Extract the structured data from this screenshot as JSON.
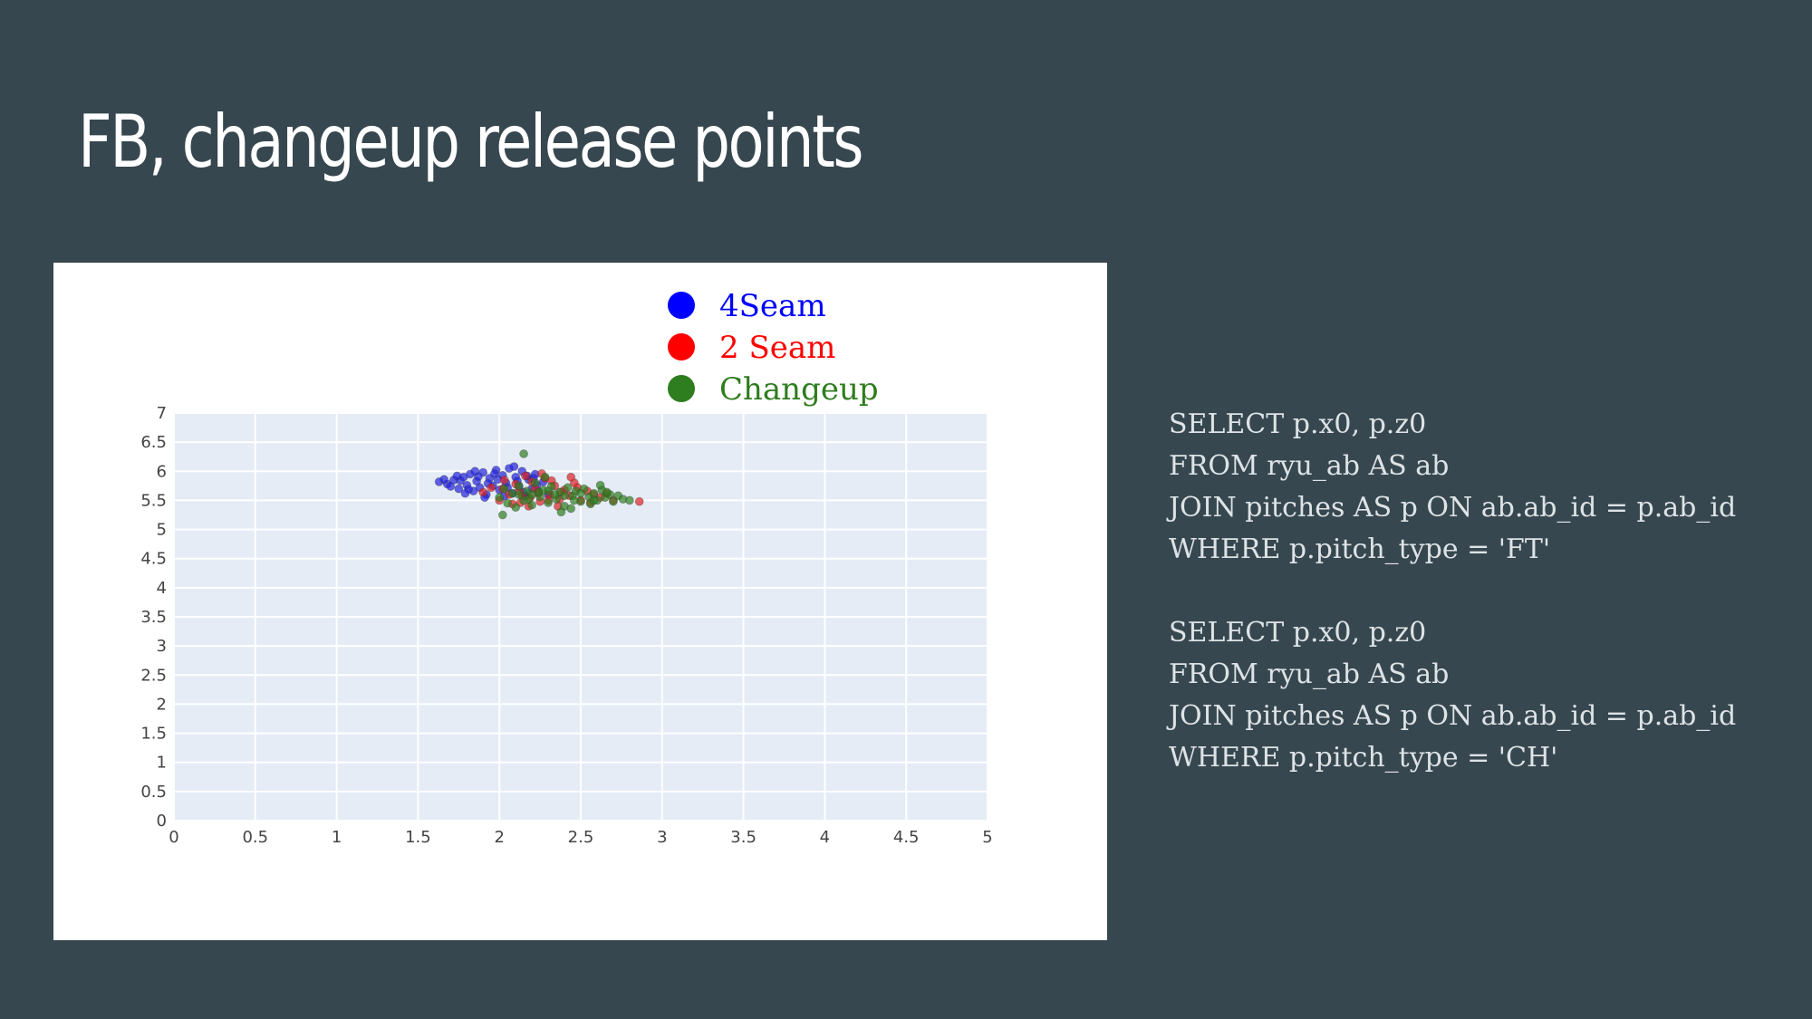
{
  "slide": {
    "title": "FB, changeup release points"
  },
  "chart_data": {
    "type": "scatter",
    "xlim": [
      0,
      5
    ],
    "ylim": [
      0,
      7
    ],
    "x_ticks": [
      "0",
      "0.5",
      "1",
      "1.5",
      "2",
      "2.5",
      "3",
      "3.5",
      "4",
      "4.5",
      "5"
    ],
    "y_ticks": [
      "0",
      "0.5",
      "1",
      "1.5",
      "2",
      "2.5",
      "3",
      "3.5",
      "4",
      "4.5",
      "5",
      "5.5",
      "6",
      "6.5",
      "7"
    ],
    "grid": true,
    "legend_position": "top",
    "legend": [
      {
        "name": "4Seam",
        "color": "#0000ff"
      },
      {
        "name": "2 Seam",
        "color": "#ff0000"
      },
      {
        "name": "Changeup",
        "color": "#2e7d1e"
      }
    ],
    "series": [
      {
        "name": "4Seam",
        "color": "#2222dd",
        "points": [
          [
            1.63,
            5.82
          ],
          [
            1.68,
            5.78
          ],
          [
            1.72,
            5.85
          ],
          [
            1.75,
            5.7
          ],
          [
            1.78,
            5.9
          ],
          [
            1.8,
            5.76
          ],
          [
            1.82,
            5.95
          ],
          [
            1.84,
            5.66
          ],
          [
            1.86,
            5.83
          ],
          [
            1.88,
            5.72
          ],
          [
            1.9,
            5.98
          ],
          [
            1.92,
            5.6
          ],
          [
            1.94,
            5.88
          ],
          [
            1.96,
            5.75
          ],
          [
            1.98,
            6.02
          ],
          [
            2.0,
            5.68
          ],
          [
            2.02,
            5.93
          ],
          [
            2.04,
            5.8
          ],
          [
            2.06,
            6.05
          ],
          [
            2.08,
            5.62
          ],
          [
            2.1,
            5.9
          ],
          [
            2.12,
            5.74
          ],
          [
            2.14,
            6.0
          ],
          [
            2.16,
            5.58
          ],
          [
            2.18,
            5.86
          ],
          [
            2.2,
            5.7
          ],
          [
            2.22,
            5.95
          ],
          [
            2.24,
            5.65
          ],
          [
            2.27,
            5.82
          ],
          [
            2.3,
            5.6
          ],
          [
            1.7,
            5.74
          ],
          [
            1.76,
            5.84
          ],
          [
            1.81,
            5.69
          ],
          [
            1.87,
            5.91
          ],
          [
            1.93,
            5.79
          ],
          [
            1.99,
            5.86
          ],
          [
            2.05,
            5.72
          ],
          [
            2.11,
            5.83
          ],
          [
            2.17,
            5.92
          ],
          [
            2.23,
            5.76
          ],
          [
            1.74,
            5.92
          ],
          [
            1.79,
            5.62
          ],
          [
            1.85,
            6.0
          ],
          [
            1.91,
            5.55
          ],
          [
            1.97,
            5.96
          ],
          [
            2.03,
            5.57
          ],
          [
            2.09,
            6.08
          ],
          [
            2.15,
            5.64
          ],
          [
            2.21,
            5.88
          ],
          [
            1.66,
            5.86
          ]
        ]
      },
      {
        "name": "2 Seam",
        "color": "#dd2222",
        "points": [
          [
            1.9,
            5.64
          ],
          [
            1.95,
            5.72
          ],
          [
            2.0,
            5.5
          ],
          [
            2.03,
            5.85
          ],
          [
            2.06,
            5.6
          ],
          [
            2.1,
            5.78
          ],
          [
            2.13,
            5.46
          ],
          [
            2.16,
            5.92
          ],
          [
            2.19,
            5.55
          ],
          [
            2.22,
            5.7
          ],
          [
            2.25,
            5.48
          ],
          [
            2.28,
            5.88
          ],
          [
            2.31,
            5.6
          ],
          [
            2.34,
            5.75
          ],
          [
            2.37,
            5.52
          ],
          [
            2.4,
            5.68
          ],
          [
            2.43,
            5.58
          ],
          [
            2.46,
            5.8
          ],
          [
            2.5,
            5.5
          ],
          [
            2.54,
            5.66
          ],
          [
            2.58,
            5.6
          ],
          [
            2.62,
            5.55
          ],
          [
            2.66,
            5.62
          ],
          [
            2.7,
            5.5
          ],
          [
            2.86,
            5.48
          ],
          [
            2.18,
            5.4
          ],
          [
            2.26,
            5.96
          ],
          [
            2.08,
            5.44
          ],
          [
            2.36,
            5.4
          ],
          [
            2.44,
            5.9
          ],
          [
            2.12,
            5.66
          ],
          [
            2.2,
            5.82
          ],
          [
            2.3,
            5.5
          ],
          [
            2.38,
            5.64
          ],
          [
            2.48,
            5.72
          ],
          [
            2.56,
            5.46
          ],
          [
            2.02,
            5.7
          ],
          [
            2.14,
            5.58
          ],
          [
            2.24,
            5.62
          ],
          [
            2.32,
            5.84
          ]
        ]
      },
      {
        "name": "Changeup",
        "color": "#2e7d1e",
        "points": [
          [
            2.0,
            5.55
          ],
          [
            2.03,
            5.7
          ],
          [
            2.05,
            5.45
          ],
          [
            2.08,
            5.62
          ],
          [
            2.1,
            5.38
          ],
          [
            2.12,
            5.75
          ],
          [
            2.15,
            5.5
          ],
          [
            2.17,
            5.66
          ],
          [
            2.2,
            5.42
          ],
          [
            2.22,
            5.8
          ],
          [
            2.25,
            5.56
          ],
          [
            2.27,
            5.68
          ],
          [
            2.3,
            5.46
          ],
          [
            2.32,
            5.74
          ],
          [
            2.35,
            5.52
          ],
          [
            2.37,
            5.64
          ],
          [
            2.4,
            5.4
          ],
          [
            2.42,
            5.72
          ],
          [
            2.45,
            5.58
          ],
          [
            2.47,
            5.66
          ],
          [
            2.5,
            5.48
          ],
          [
            2.52,
            5.7
          ],
          [
            2.55,
            5.56
          ],
          [
            2.58,
            5.62
          ],
          [
            2.6,
            5.5
          ],
          [
            2.63,
            5.68
          ],
          [
            2.65,
            5.55
          ],
          [
            2.68,
            5.6
          ],
          [
            2.7,
            5.48
          ],
          [
            2.73,
            5.58
          ],
          [
            2.76,
            5.52
          ],
          [
            2.8,
            5.5
          ],
          [
            2.02,
            5.25
          ],
          [
            2.15,
            6.3
          ],
          [
            2.38,
            5.3
          ],
          [
            2.28,
            5.9
          ],
          [
            2.44,
            5.36
          ],
          [
            2.56,
            5.44
          ],
          [
            2.62,
            5.76
          ],
          [
            2.12,
            5.6
          ],
          [
            2.18,
            5.52
          ],
          [
            2.24,
            5.64
          ],
          [
            2.34,
            5.6
          ],
          [
            2.46,
            5.5
          ],
          [
            2.5,
            5.62
          ],
          [
            2.66,
            5.64
          ],
          [
            2.58,
            5.5
          ],
          [
            2.4,
            5.58
          ],
          [
            2.3,
            5.66
          ],
          [
            2.2,
            5.6
          ]
        ]
      }
    ]
  },
  "sql_queries": [
    {
      "lines": [
        "SELECT p.x0, p.z0",
        "FROM ryu_ab AS ab",
        "JOIN pitches AS p ON ab.ab_id = p.ab_id",
        "WHERE p.pitch_type = 'FT'"
      ]
    },
    {
      "lines": [
        "SELECT p.x0, p.z0",
        "FROM ryu_ab AS ab",
        "JOIN pitches AS p ON ab.ab_id = p.ab_id",
        "WHERE p.pitch_type = 'CH'"
      ]
    }
  ]
}
